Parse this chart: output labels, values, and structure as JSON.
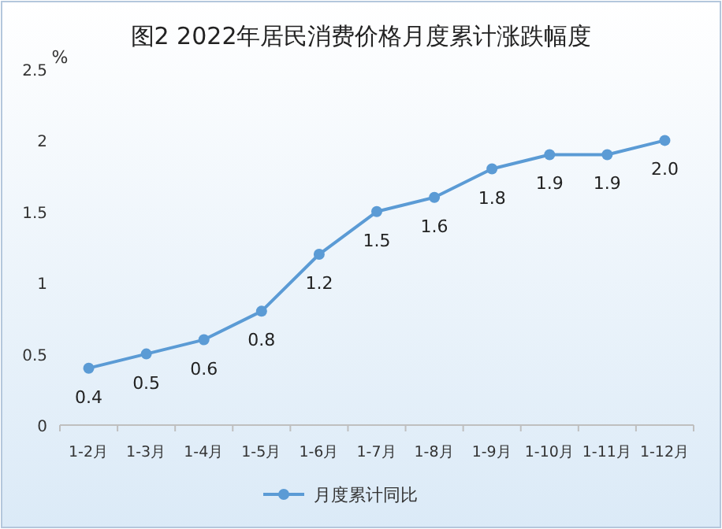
{
  "chart_data": {
    "type": "line",
    "title": "图2 2022年居民消费价格月度累计涨跌幅度",
    "ylabel": "%",
    "categories": [
      "1-2月",
      "1-3月",
      "1-4月",
      "1-5月",
      "1-6月",
      "1-7月",
      "1-8月",
      "1-9月",
      "1-10月",
      "1-11月",
      "1-12月"
    ],
    "series": [
      {
        "name": "月度累计同比",
        "color": "#5b9bd5",
        "values": [
          0.4,
          0.5,
          0.6,
          0.8,
          1.2,
          1.5,
          1.6,
          1.8,
          1.9,
          1.9,
          2.0
        ],
        "value_labels": [
          "0.4",
          "0.5",
          "0.6",
          "0.8",
          "1.2",
          "1.5",
          "1.6",
          "1.8",
          "1.9",
          "1.9",
          "2.0"
        ]
      }
    ],
    "ylim": [
      0,
      2.5
    ],
    "yticks": [
      0,
      0.5,
      1,
      1.5,
      2,
      2.5
    ],
    "grid": false,
    "legend": "bottom",
    "marker": "circle",
    "line_style": "solid"
  }
}
